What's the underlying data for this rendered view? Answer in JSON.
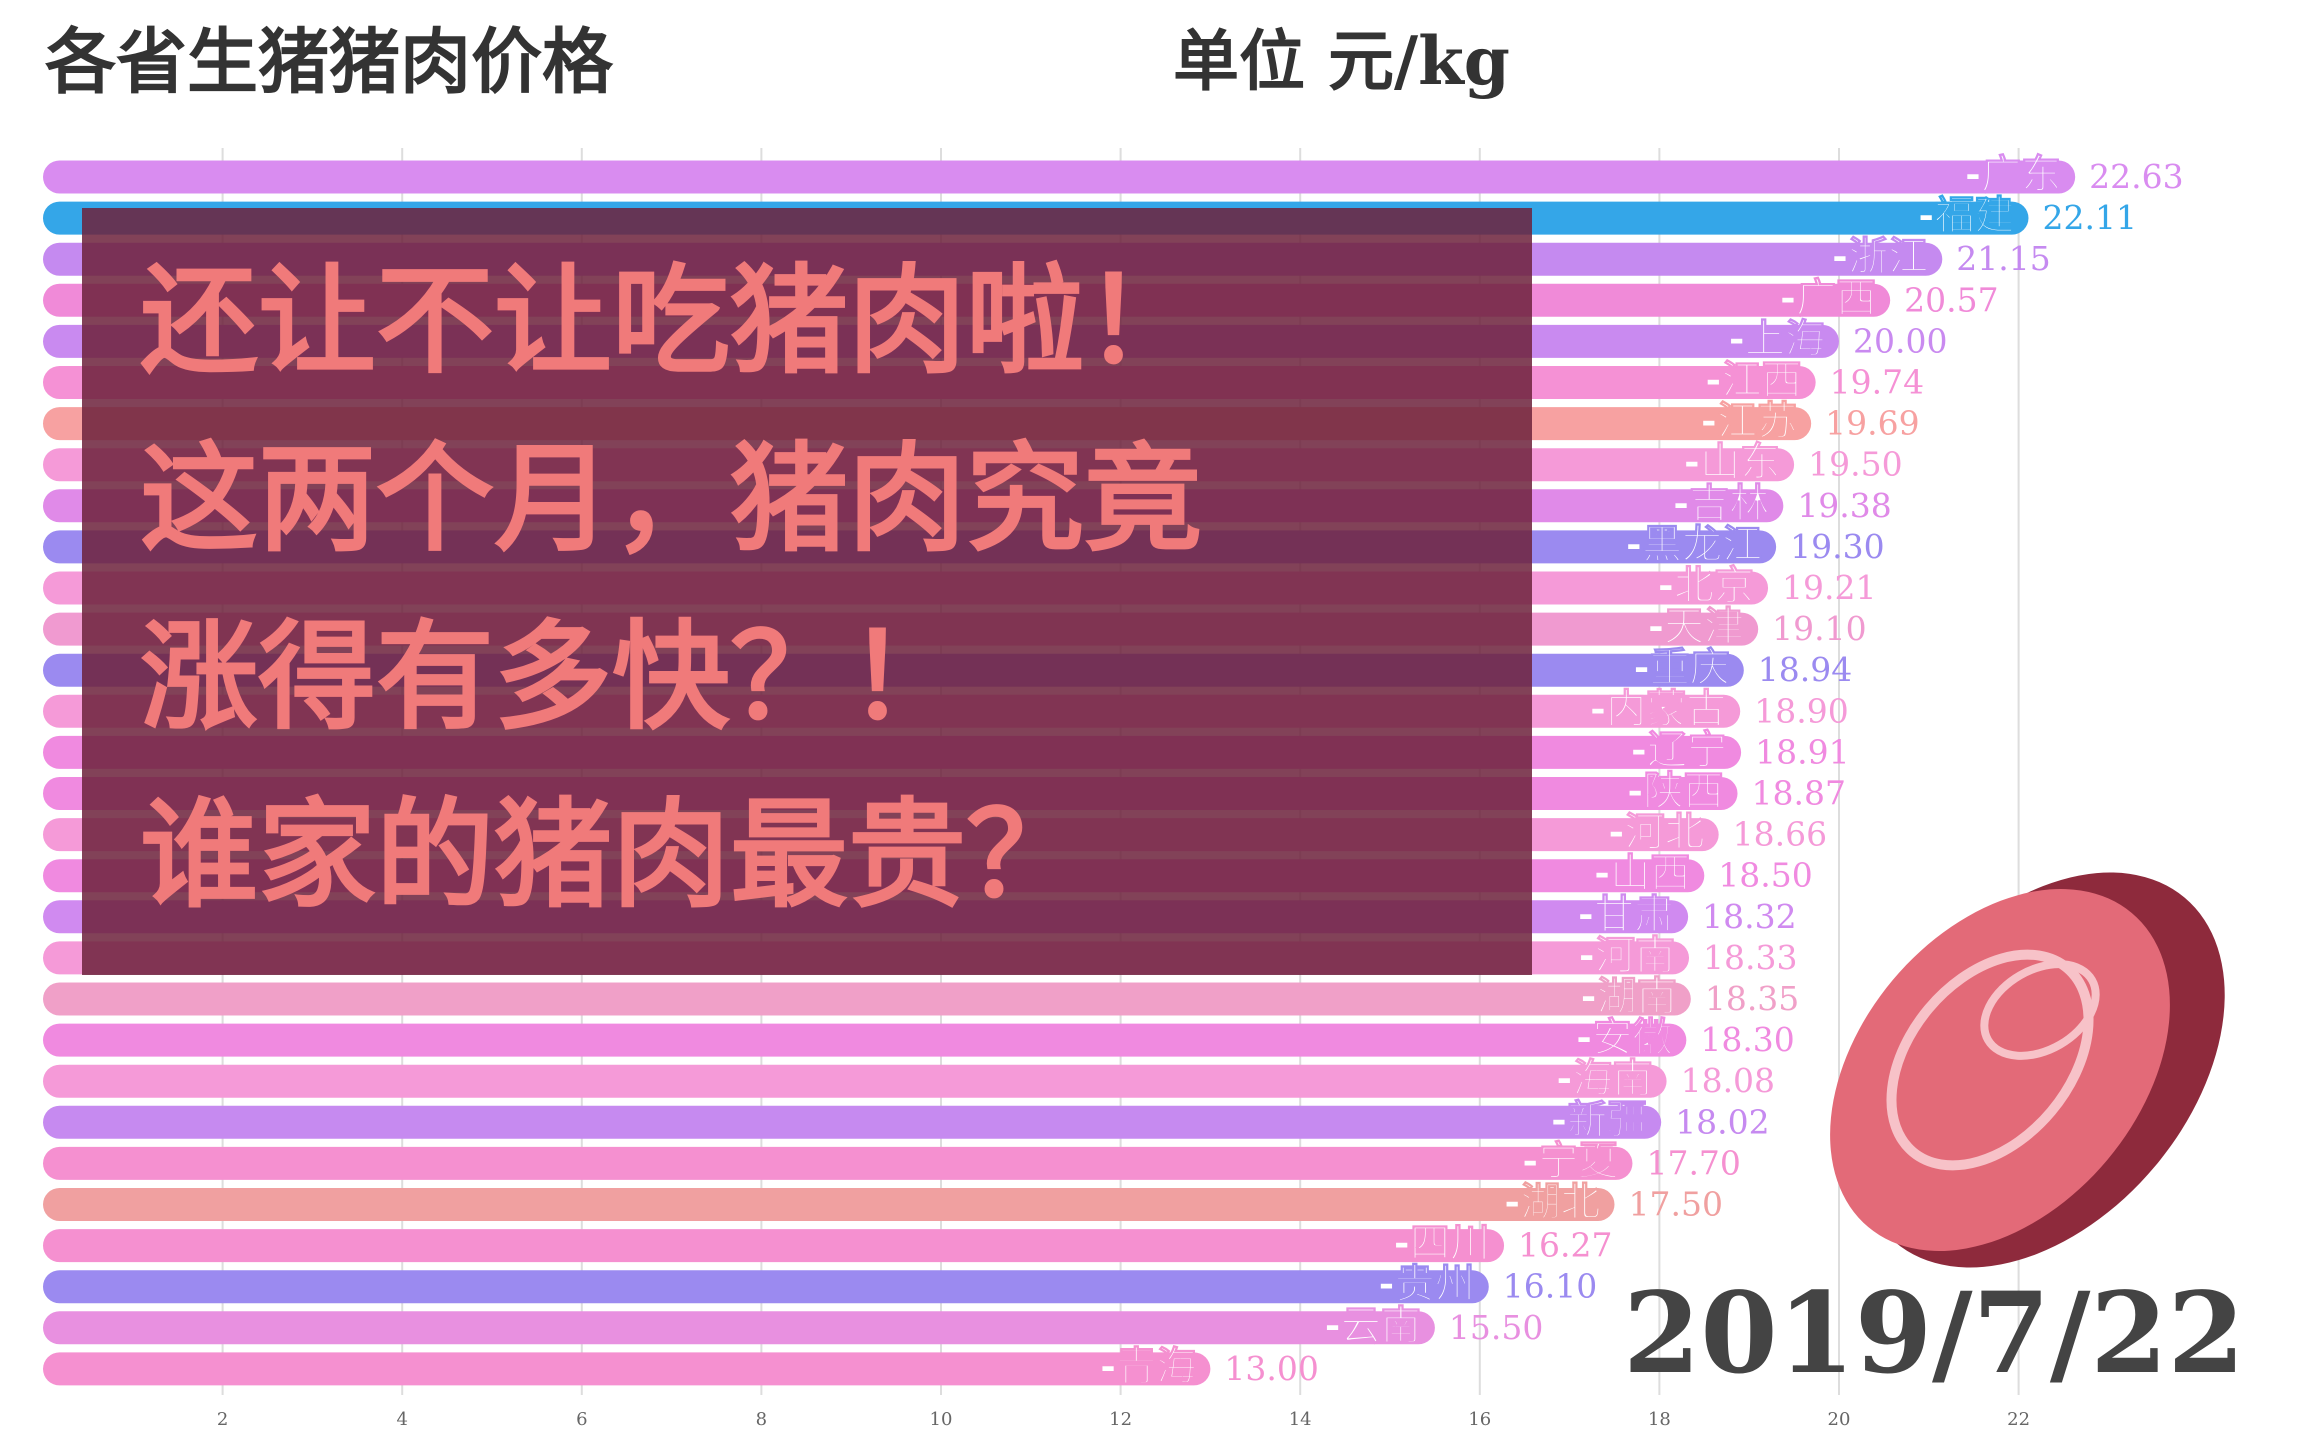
{
  "chart_data": {
    "type": "bar",
    "orientation": "horizontal",
    "title": "各省生猪猪肉价格",
    "subtitle": "单位 元/kg",
    "date": "2019/7/22",
    "annotations": [
      "还让不让吃猪肉啦！",
      "这两个月，猪肉究竟",
      "涨得有多快？！",
      "谁家的猪肉最贵？"
    ],
    "categories": [
      "-广东",
      "-福建",
      "-浙江",
      "-广西",
      "-上海",
      "-江西",
      "-江苏",
      "-山东",
      "-吉林",
      "-黑龙江",
      "-北京",
      "-天津",
      "-重庆",
      "-内蒙古",
      "-辽宁",
      "-陕西",
      "-河北",
      "-山西",
      "-甘肃",
      "-河南",
      "-湖南",
      "-安徽",
      "-海南",
      "-新疆",
      "-宁夏",
      "-湖北",
      "-四川",
      "-贵州",
      "-云南",
      "-青海"
    ],
    "values": [
      22.63,
      22.11,
      21.15,
      20.57,
      20.0,
      19.74,
      19.69,
      19.5,
      19.38,
      19.3,
      19.21,
      19.1,
      18.94,
      18.9,
      18.91,
      18.87,
      18.66,
      18.5,
      18.32,
      18.33,
      18.35,
      18.3,
      18.08,
      18.02,
      17.7,
      17.5,
      16.27,
      16.1,
      15.5,
      13.0
    ],
    "value_labels": [
      "22.63",
      "22.11",
      "21.15",
      "20.57",
      "20.00",
      "19.74",
      "19.69",
      "19.50",
      "19.38",
      "19.30",
      "19.21",
      "19.10",
      "18.94",
      "18.90",
      "18.91",
      "18.87",
      "18.66",
      "18.50",
      "18.32",
      "18.33",
      "18.35",
      "18.30",
      "18.08",
      "18.02",
      "17.70",
      "17.50",
      "16.27",
      "16.10",
      "15.50",
      "13.00"
    ],
    "colors": [
      "#d98cf0",
      "#34a6e8",
      "#c58af0",
      "#f08ad8",
      "#c98af0",
      "#f591d5",
      "#f7a1a1",
      "#f59ad8",
      "#e08ae8",
      "#9b8af0",
      "#f59ad8",
      "#f09ad0",
      "#9b8af0",
      "#f59ad8",
      "#f08ae0",
      "#f08ae0",
      "#f59ad8",
      "#f08ae0",
      "#d08af0",
      "#f59ad8",
      "#f0a0c8",
      "#f08ae0",
      "#f59ad8",
      "#c68af0",
      "#f590d0",
      "#f0a0a0",
      "#f590d0",
      "#9b8af0",
      "#e890e0",
      "#f590d0"
    ],
    "xlim": [
      0,
      25
    ],
    "xticks": [
      2,
      4,
      6,
      8,
      10,
      12,
      14,
      16,
      18,
      20,
      22
    ],
    "grid": true
  }
}
